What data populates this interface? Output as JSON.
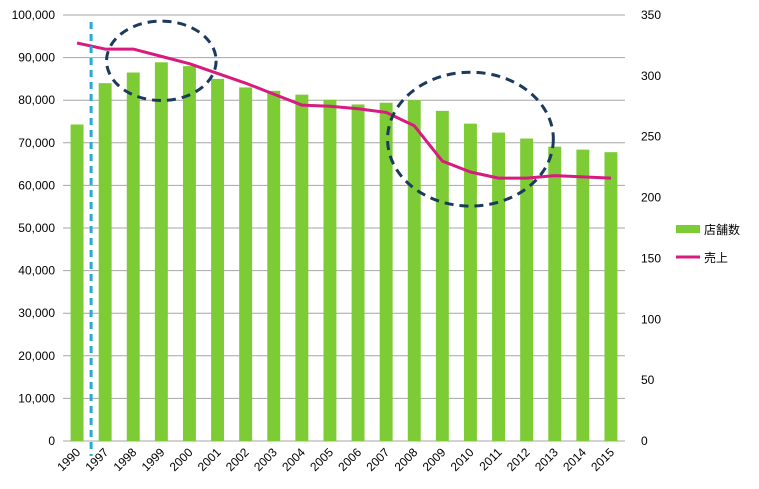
{
  "chart_data": {
    "type": "bar+line",
    "categories": [
      "1990",
      "1997",
      "1998",
      "1999",
      "2000",
      "2001",
      "2002",
      "2003",
      "2004",
      "2005",
      "2006",
      "2007",
      "2008",
      "2009",
      "2010",
      "2011",
      "2012",
      "2013",
      "2014",
      "2015"
    ],
    "series": [
      {
        "name": "店舗数",
        "type": "bar",
        "axis": "left",
        "color": "#7DCB35",
        "values": [
          74300,
          84000,
          86500,
          88900,
          88000,
          85000,
          83000,
          82200,
          81300,
          80100,
          79000,
          79400,
          80000,
          77500,
          74500,
          72400,
          71000,
          69100,
          68400,
          67800
        ]
      },
      {
        "name": "売上",
        "type": "line",
        "axis": "right",
        "color": "#D81B7F",
        "values": [
          327,
          322,
          322,
          316,
          310,
          302,
          294,
          285,
          276,
          275,
          273,
          270,
          259,
          230,
          221,
          216,
          216,
          218,
          217,
          216
        ]
      }
    ],
    "ylim_left": [
      0,
      100000
    ],
    "yticks_left": [
      "0",
      "10,000",
      "20,000",
      "30,000",
      "40,000",
      "50,000",
      "60,000",
      "70,000",
      "80,000",
      "90,000",
      "100,000"
    ],
    "ylim_right": [
      0,
      350
    ],
    "yticks_right": [
      "0",
      "50",
      "100",
      "150",
      "200",
      "250",
      "300",
      "350"
    ],
    "xlabel": "",
    "ylabel": "",
    "grid": "horizontal",
    "legend": "right",
    "annotations": [
      {
        "kind": "dashed-vertical-line",
        "color": "#29A9D9",
        "between": [
          "1990",
          "1997"
        ]
      },
      {
        "kind": "dashed-ellipse",
        "color": "#1B3A5C",
        "around": [
          "1998",
          "2000"
        ]
      },
      {
        "kind": "dashed-ellipse",
        "color": "#1B3A5C",
        "around": [
          "2008",
          "2012"
        ]
      }
    ]
  }
}
